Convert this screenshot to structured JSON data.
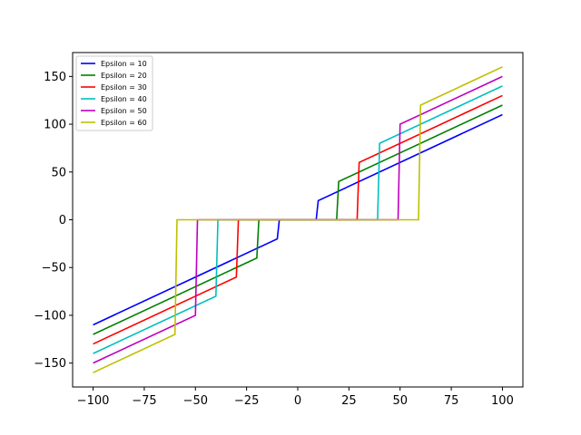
{
  "chart_data": {
    "type": "line",
    "title": "",
    "xlabel": "",
    "ylabel": "",
    "xlim": [
      -110,
      110
    ],
    "ylim": [
      -175,
      175
    ],
    "x_ticks": [
      -100,
      -75,
      -50,
      -25,
      0,
      25,
      50,
      75,
      100
    ],
    "x_tick_labels": [
      "−100",
      "−75",
      "−50",
      "−25",
      "0",
      "25",
      "50",
      "75",
      "100"
    ],
    "y_ticks": [
      -150,
      -100,
      -50,
      0,
      50,
      100,
      150
    ],
    "y_tick_labels": [
      "−150",
      "−100",
      "−50",
      "0",
      "50",
      "100",
      "150"
    ],
    "grid": false,
    "legend": "top-left",
    "series": [
      {
        "name": "Epsilon = 10",
        "epsilon": 10,
        "color": "#0000ff",
        "points": [
          [
            -100,
            -110
          ],
          [
            -10,
            -20
          ],
          [
            -9,
            0
          ],
          [
            9,
            0
          ],
          [
            10,
            20
          ],
          [
            100,
            110
          ]
        ]
      },
      {
        "name": "Epsilon = 20",
        "epsilon": 20,
        "color": "#008000",
        "points": [
          [
            -100,
            -120
          ],
          [
            -20,
            -40
          ],
          [
            -19,
            0
          ],
          [
            19,
            0
          ],
          [
            20,
            40
          ],
          [
            100,
            120
          ]
        ]
      },
      {
        "name": "Epsilon = 30",
        "epsilon": 30,
        "color": "#ff0000",
        "points": [
          [
            -100,
            -130
          ],
          [
            -30,
            -60
          ],
          [
            -29,
            0
          ],
          [
            29,
            0
          ],
          [
            30,
            60
          ],
          [
            100,
            130
          ]
        ]
      },
      {
        "name": "Epsilon = 40",
        "epsilon": 40,
        "color": "#00bfbf",
        "points": [
          [
            -100,
            -140
          ],
          [
            -40,
            -80
          ],
          [
            -39,
            0
          ],
          [
            39,
            0
          ],
          [
            40,
            80
          ],
          [
            100,
            140
          ]
        ]
      },
      {
        "name": "Epsilon = 50",
        "epsilon": 50,
        "color": "#bf00bf",
        "points": [
          [
            -100,
            -150
          ],
          [
            -50,
            -100
          ],
          [
            -49,
            0
          ],
          [
            49,
            0
          ],
          [
            50,
            100
          ],
          [
            100,
            150
          ]
        ]
      },
      {
        "name": "Epsilon = 60",
        "epsilon": 60,
        "color": "#bfbf00",
        "points": [
          [
            -100,
            -160
          ],
          [
            -60,
            -120
          ],
          [
            -59,
            0
          ],
          [
            59,
            0
          ],
          [
            60,
            120
          ],
          [
            100,
            160
          ]
        ]
      }
    ]
  }
}
